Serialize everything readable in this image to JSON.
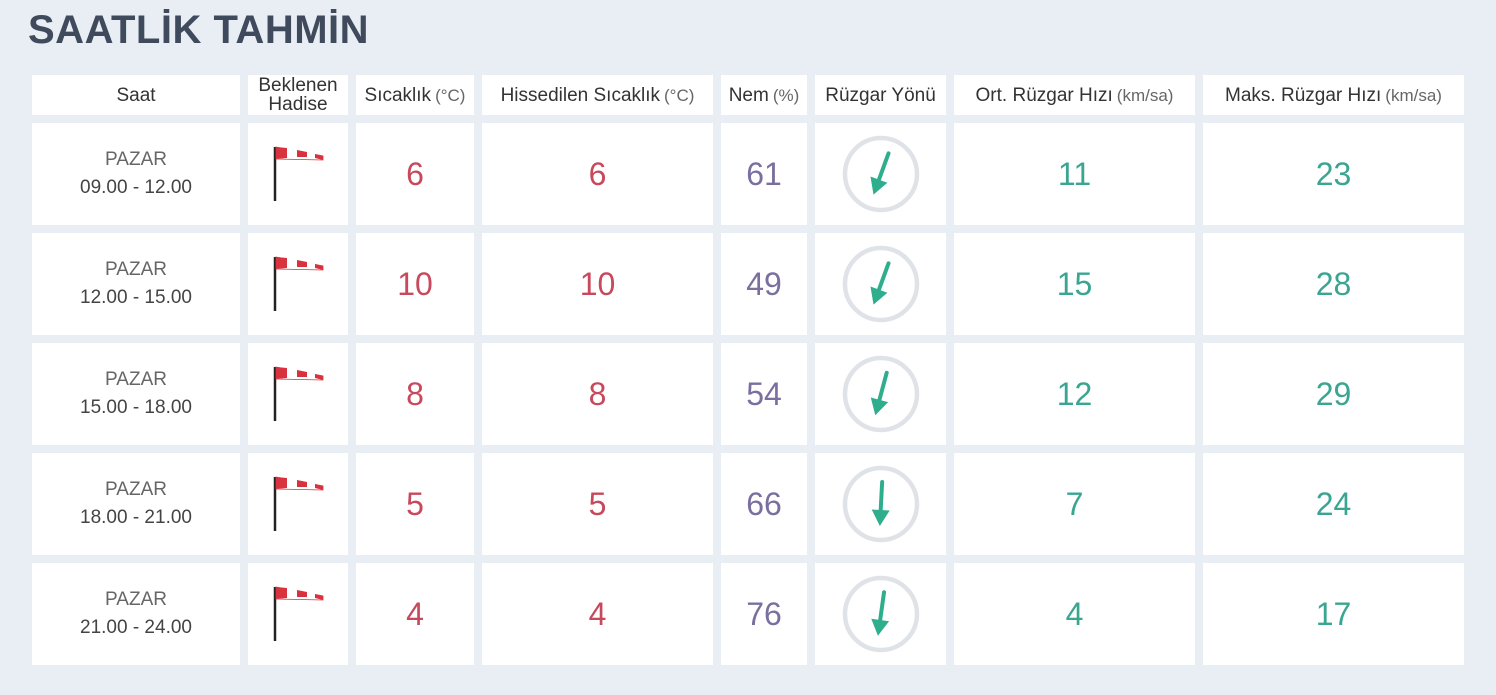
{
  "title": "SAATLİK TAHMİN",
  "table": {
    "headers": [
      {
        "label": "Saat"
      },
      {
        "label": "Beklenen Hadise"
      },
      {
        "label": "Sıcaklık",
        "unit": "(°C)"
      },
      {
        "label": "Hissedilen Sıcaklık",
        "unit": "(°C)"
      },
      {
        "label": "Nem",
        "unit": "(%)"
      },
      {
        "label": "Rüzgar Yönü"
      },
      {
        "label": "Ort. Rüzgar Hızı",
        "unit": "(km/sa)"
      },
      {
        "label": "Maks. Rüzgar Hızı",
        "unit": "(km/sa)"
      }
    ],
    "rows": [
      {
        "day": "PAZAR",
        "time": "09.00 - 12.00",
        "temperature": 6,
        "feels_like": 6,
        "humidity": 61,
        "wind_direction": 20,
        "wind_speed": 11,
        "max_wind_speed": 23
      },
      {
        "day": "PAZAR",
        "time": "12.00 - 15.00",
        "temperature": 10,
        "feels_like": 10,
        "humidity": 49,
        "wind_direction": 20,
        "wind_speed": 15,
        "max_wind_speed": 28
      },
      {
        "day": "PAZAR",
        "time": "15.00 - 18.00",
        "temperature": 8,
        "feels_like": 8,
        "humidity": 54,
        "wind_direction": 15,
        "wind_speed": 12,
        "max_wind_speed": 29
      },
      {
        "day": "PAZAR",
        "time": "18.00 - 21.00",
        "temperature": 5,
        "feels_like": 5,
        "humidity": 66,
        "wind_direction": 3,
        "wind_speed": 7,
        "max_wind_speed": 24
      },
      {
        "day": "PAZAR",
        "time": "21.00 - 24.00",
        "temperature": 4,
        "feels_like": 4,
        "humidity": 76,
        "wind_direction": 8,
        "wind_speed": 4,
        "max_wind_speed": 17
      }
    ]
  }
}
